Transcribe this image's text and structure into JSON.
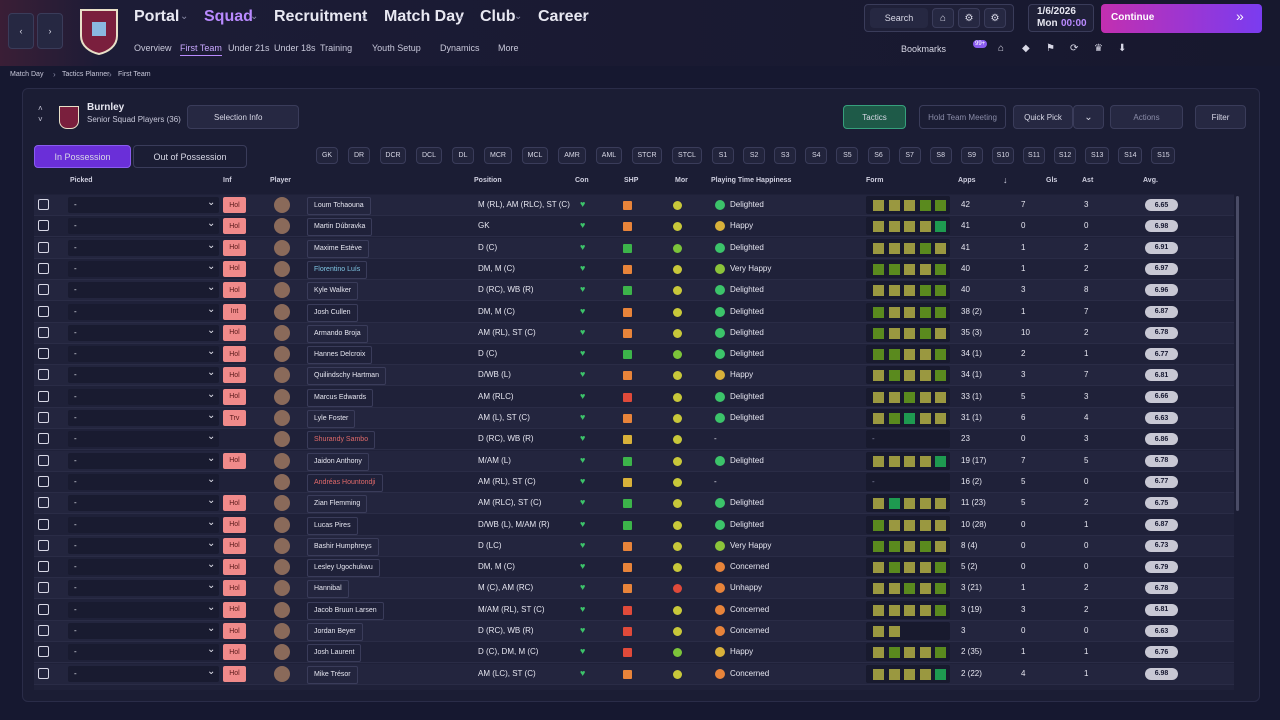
{
  "nav": {
    "main": [
      "Portal",
      "Squad",
      "Recruitment",
      "Match Day",
      "Club",
      "Career"
    ],
    "active_main": 1,
    "sub": [
      "Overview",
      "First Team",
      "Under 21s",
      "Under 18s",
      "Training",
      "Youth Setup",
      "Dynamics",
      "More"
    ],
    "active_sub": 1,
    "search": "Search",
    "date": "1/6/2026",
    "day": "Mon",
    "time": "00:00",
    "continue": "Continue",
    "bookmarks": "Bookmarks",
    "badge": "99+"
  },
  "breadcrumb": [
    "Match Day",
    "Tactics Planner",
    "First Team"
  ],
  "header": {
    "club": "Burnley",
    "subtitle": "Senior Squad Players (36)",
    "selection_info": "Selection Info",
    "tactics": "Tactics",
    "hold_meeting": "Hold Team Meeting",
    "quick_pick": "Quick Pick",
    "actions": "Actions",
    "filter": "Filter"
  },
  "tabs": [
    "In Possession",
    "Out of Possession"
  ],
  "positions": [
    "GK",
    "DR",
    "DCR",
    "DCL",
    "DL",
    "MCR",
    "MCL",
    "AMR",
    "AML",
    "STCR",
    "STCL",
    "S1",
    "S2",
    "S3",
    "S4",
    "S5",
    "S6",
    "S7",
    "S8",
    "S9",
    "S10",
    "S11",
    "S12",
    "S13",
    "S14",
    "S15"
  ],
  "table": {
    "columns": [
      "Picked",
      "Inf",
      "Player",
      "Position",
      "Con",
      "SHP",
      "Mor",
      "Playing Time Happiness",
      "Form",
      "Apps",
      "Gls",
      "Ast",
      "Avg."
    ],
    "rows": [
      {
        "picked": "-",
        "inf": "Hol",
        "name": "Loum Tchaouna",
        "position": "M (RL), AM (RLC), ST (C)",
        "shp": "#e8843a",
        "mor": "#c8c83a",
        "hap_color": "#3cc46a",
        "happiness": "Delighted",
        "form": [
          "#9a9840",
          "#9a9840",
          "#9a9840",
          "#5a8a1e",
          "#5a8a1e"
        ],
        "apps": "42",
        "gls": "7",
        "ast": "3",
        "avg": "6.65"
      },
      {
        "picked": "-",
        "inf": "Hol",
        "name": "Martin Dúbravka",
        "position": "GK",
        "shp": "#e8843a",
        "mor": "#c8c83a",
        "hap_color": "#d8b13a",
        "happiness": "Happy",
        "form": [
          "#9a9840",
          "#9a9840",
          "#9a9840",
          "#9a9840",
          "#1e9a50"
        ],
        "apps": "41",
        "gls": "0",
        "ast": "0",
        "avg": "6.98"
      },
      {
        "picked": "-",
        "inf": "Hol",
        "name": "Maxime Estève",
        "position": "D (C)",
        "shp": "#3cb44a",
        "mor": "#7cc43a",
        "hap_color": "#3cc46a",
        "happiness": "Delighted",
        "form": [
          "#9a9840",
          "#9a9840",
          "#9a9840",
          "#5a8a1e",
          "#9a9840"
        ],
        "apps": "41",
        "gls": "1",
        "ast": "2",
        "avg": "6.91"
      },
      {
        "picked": "-",
        "inf": "Hol",
        "name": "Florentino Luís",
        "name_color": "#7fc6e4",
        "position": "DM, M (C)",
        "shp": "#e8843a",
        "mor": "#c8c83a",
        "hap_color": "#8cc43a",
        "happiness": "Very Happy",
        "form": [
          "#5a8a1e",
          "#5a8a1e",
          "#9a9840",
          "#9a9840",
          "#5a8a1e"
        ],
        "apps": "40",
        "gls": "1",
        "ast": "2",
        "avg": "6.97"
      },
      {
        "picked": "-",
        "inf": "Hol",
        "name": "Kyle Walker",
        "position": "D (RC), WB (R)",
        "shp": "#3cb44a",
        "mor": "#c8c83a",
        "hap_color": "#3cc46a",
        "happiness": "Delighted",
        "form": [
          "#9a9840",
          "#9a9840",
          "#9a9840",
          "#5a8a1e",
          "#5a8a1e"
        ],
        "apps": "40",
        "gls": "3",
        "ast": "8",
        "avg": "6.96"
      },
      {
        "picked": "-",
        "inf": "Int",
        "name": "Josh Cullen",
        "position": "DM, M (C)",
        "shp": "#e8843a",
        "mor": "#c8c83a",
        "hap_color": "#3cc46a",
        "happiness": "Delighted",
        "form": [
          "#5a8a1e",
          "#9a9840",
          "#9a9840",
          "#5a8a1e",
          "#5a8a1e"
        ],
        "apps": "38 (2)",
        "gls": "1",
        "ast": "7",
        "avg": "6.87"
      },
      {
        "picked": "-",
        "inf": "Hol",
        "name": "Armando Broja",
        "position": "AM (RL), ST (C)",
        "shp": "#e8843a",
        "mor": "#c8c83a",
        "hap_color": "#3cc46a",
        "happiness": "Delighted",
        "form": [
          "#5a8a1e",
          "#9a9840",
          "#9a9840",
          "#5a8a1e",
          "#9a9840"
        ],
        "apps": "35 (3)",
        "gls": "10",
        "ast": "2",
        "avg": "6.78"
      },
      {
        "picked": "-",
        "inf": "Hol",
        "name": "Hannes Delcroix",
        "position": "D (C)",
        "shp": "#3cb44a",
        "mor": "#7cc43a",
        "hap_color": "#3cc46a",
        "happiness": "Delighted",
        "form": [
          "#5a8a1e",
          "#5a8a1e",
          "#9a9840",
          "#9a9840",
          "#5a8a1e"
        ],
        "apps": "34 (1)",
        "gls": "2",
        "ast": "1",
        "avg": "6.77"
      },
      {
        "picked": "-",
        "inf": "Hol",
        "name": "Quilindschy Hartman",
        "position": "D/WB (L)",
        "shp": "#e8843a",
        "mor": "#c8c83a",
        "hap_color": "#d8b13a",
        "happiness": "Happy",
        "form": [
          "#9a9840",
          "#5a8a1e",
          "#9a9840",
          "#9a9840",
          "#5a8a1e"
        ],
        "apps": "34 (1)",
        "gls": "3",
        "ast": "7",
        "avg": "6.81"
      },
      {
        "picked": "-",
        "inf": "Hol",
        "name": "Marcus Edwards",
        "position": "AM (RLC)",
        "shp": "#e04a3a",
        "mor": "#c8c83a",
        "hap_color": "#3cc46a",
        "happiness": "Delighted",
        "form": [
          "#9a9840",
          "#9a9840",
          "#5a8a1e",
          "#9a9840",
          "#9a9840"
        ],
        "apps": "33 (1)",
        "gls": "5",
        "ast": "3",
        "avg": "6.66"
      },
      {
        "picked": "-",
        "inf": "Trv",
        "name": "Lyle Foster",
        "position": "AM (L), ST (C)",
        "shp": "#e8843a",
        "mor": "#c8c83a",
        "hap_color": "#3cc46a",
        "happiness": "Delighted",
        "form": [
          "#9a9840",
          "#5a8a1e",
          "#1e9a50",
          "#9a9840",
          "#9a9840"
        ],
        "apps": "31 (1)",
        "gls": "6",
        "ast": "4",
        "avg": "6.63"
      },
      {
        "picked": "-",
        "name": "Shurandy Sambo",
        "name_color": "#e06a6a",
        "position": "D (RC), WB (R)",
        "shp": "#d8b13a",
        "mor": "#c8c83a",
        "happiness": "-",
        "form_text": "-",
        "apps": "23",
        "gls": "0",
        "ast": "3",
        "avg": "6.86"
      },
      {
        "picked": "-",
        "inf": "Hol",
        "name": "Jaidon Anthony",
        "position": "M/AM (L)",
        "shp": "#3cb44a",
        "mor": "#c8c83a",
        "hap_color": "#3cc46a",
        "happiness": "Delighted",
        "form": [
          "#9a9840",
          "#9a9840",
          "#9a9840",
          "#9a9840",
          "#1e9a50"
        ],
        "apps": "19 (17)",
        "gls": "7",
        "ast": "5",
        "avg": "6.78"
      },
      {
        "picked": "-",
        "name": "Andréas Hountondji",
        "name_color": "#e06a6a",
        "position": "AM (RL), ST (C)",
        "shp": "#d8b13a",
        "mor": "#c8c83a",
        "happiness": "-",
        "form_text": "-",
        "apps": "16 (2)",
        "gls": "5",
        "ast": "0",
        "avg": "6.77"
      },
      {
        "picked": "-",
        "inf": "Hol",
        "name": "Zian Flemming",
        "position": "AM (RLC), ST (C)",
        "shp": "#3cb44a",
        "mor": "#c8c83a",
        "hap_color": "#3cc46a",
        "happiness": "Delighted",
        "form": [
          "#9a9840",
          "#1e9a50",
          "#9a9840",
          "#9a9840",
          "#9a9840"
        ],
        "apps": "11 (23)",
        "gls": "5",
        "ast": "2",
        "avg": "6.75"
      },
      {
        "picked": "-",
        "inf": "Hol",
        "name": "Lucas Pires",
        "position": "D/WB (L), M/AM (R)",
        "shp": "#3cb44a",
        "mor": "#c8c83a",
        "hap_color": "#3cc46a",
        "happiness": "Delighted",
        "form": [
          "#5a8a1e",
          "#9a9840",
          "#9a9840",
          "#9a9840",
          "#9a9840"
        ],
        "apps": "10 (28)",
        "gls": "0",
        "ast": "1",
        "avg": "6.87"
      },
      {
        "picked": "-",
        "inf": "Hol",
        "name": "Bashir Humphreys",
        "position": "D (LC)",
        "shp": "#e8843a",
        "mor": "#c8c83a",
        "hap_color": "#8cc43a",
        "happiness": "Very Happy",
        "form": [
          "#5a8a1e",
          "#5a8a1e",
          "#9a9840",
          "#5a8a1e",
          "#9a9840"
        ],
        "apps": "8 (4)",
        "gls": "0",
        "ast": "0",
        "avg": "6.73"
      },
      {
        "picked": "-",
        "inf": "Hol",
        "name": "Lesley Ugochukwu",
        "position": "DM, M (C)",
        "shp": "#e8843a",
        "mor": "#c8c83a",
        "hap_color": "#e8843a",
        "happiness": "Concerned",
        "form": [
          "#9a9840",
          "#5a8a1e",
          "#9a9840",
          "#9a9840",
          "#5a8a1e"
        ],
        "apps": "5 (2)",
        "gls": "0",
        "ast": "0",
        "avg": "6.79"
      },
      {
        "picked": "-",
        "inf": "Hol",
        "name": "Hannibal",
        "position": "M (C), AM (RC)",
        "shp": "#e8843a",
        "mor": "#e04a3a",
        "hap_color": "#e8843a",
        "happiness": "Unhappy",
        "form": [
          "#9a9840",
          "#9a9840",
          "#5a8a1e",
          "#9a9840",
          "#5a8a1e"
        ],
        "apps": "3 (21)",
        "gls": "1",
        "ast": "2",
        "avg": "6.78"
      },
      {
        "picked": "-",
        "inf": "Hol",
        "name": "Jacob Bruun Larsen",
        "position": "M/AM (RL), ST (C)",
        "shp": "#e04a3a",
        "mor": "#c8c83a",
        "hap_color": "#e8843a",
        "happiness": "Concerned",
        "form": [
          "#9a9840",
          "#9a9840",
          "#9a9840",
          "#9a9840",
          "#5a8a1e"
        ],
        "apps": "3 (19)",
        "gls": "3",
        "ast": "2",
        "avg": "6.81"
      },
      {
        "picked": "-",
        "inf": "Hol",
        "name": "Jordan Beyer",
        "position": "D (RC), WB (R)",
        "shp": "#e04a3a",
        "mor": "#c8c83a",
        "hap_color": "#e8843a",
        "happiness": "Concerned",
        "form": [
          "#9a9840",
          "#9a9840"
        ],
        "apps": "3",
        "gls": "0",
        "ast": "0",
        "avg": "6.63"
      },
      {
        "picked": "-",
        "inf": "Hol",
        "name": "Josh Laurent",
        "position": "D (C), DM, M (C)",
        "shp": "#e04a3a",
        "mor": "#7cc43a",
        "hap_color": "#d8b13a",
        "happiness": "Happy",
        "form": [
          "#9a9840",
          "#5a8a1e",
          "#9a9840",
          "#9a9840",
          "#5a8a1e"
        ],
        "apps": "2 (35)",
        "gls": "1",
        "ast": "1",
        "avg": "6.76"
      },
      {
        "picked": "-",
        "inf": "Hol",
        "name": "Mike Trésor",
        "position": "AM (LC), ST (C)",
        "shp": "#e8843a",
        "mor": "#c8c83a",
        "hap_color": "#e8843a",
        "happiness": "Concerned",
        "form": [
          "#9a9840",
          "#9a9840",
          "#9a9840",
          "#9a9840",
          "#1e9a50"
        ],
        "apps": "2 (22)",
        "gls": "4",
        "ast": "1",
        "avg": "6.98"
      }
    ]
  }
}
